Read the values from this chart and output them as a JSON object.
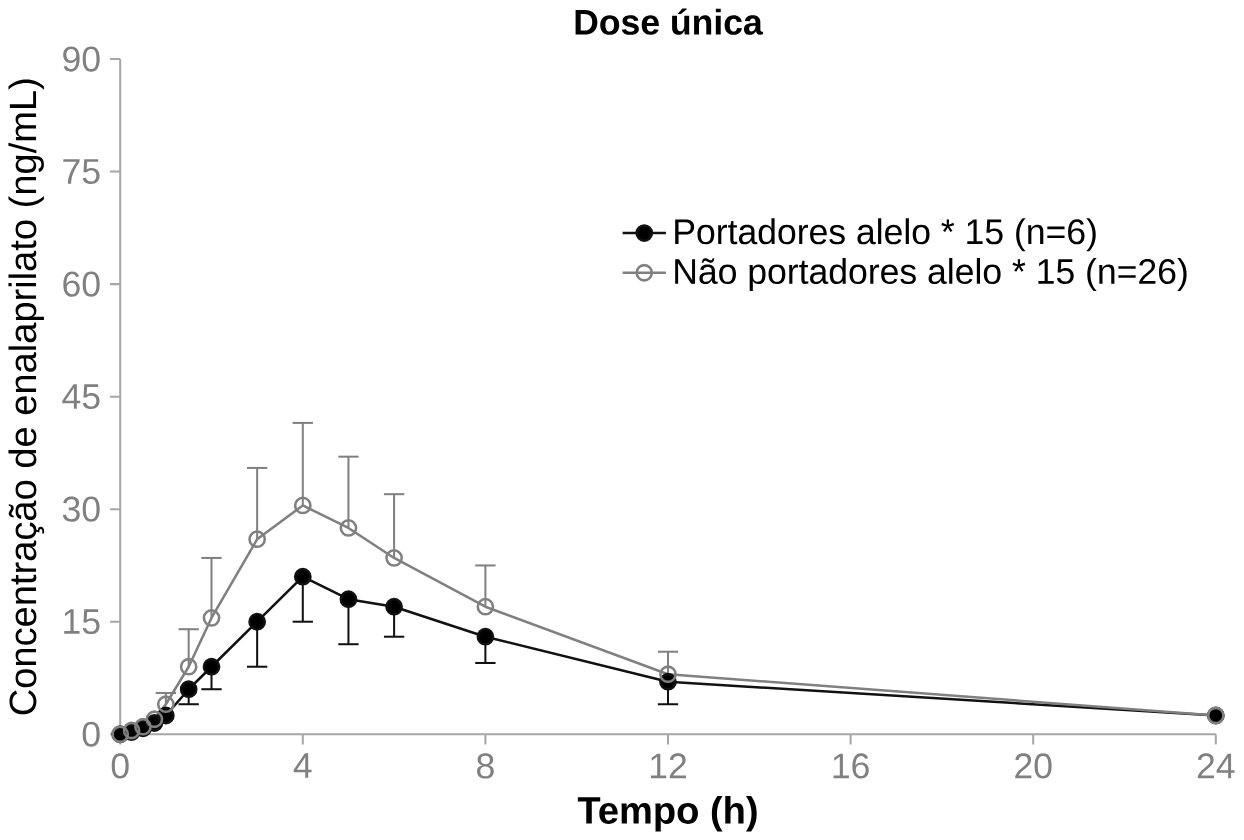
{
  "chart_data": {
    "type": "line",
    "title": "Dose única",
    "xlabel": "Tempo (h)",
    "ylabel": "Concentração de enalaprilato (ng/mL)",
    "x": [
      0,
      0.25,
      0.5,
      0.75,
      1,
      1.5,
      2,
      3,
      4,
      5,
      6,
      8,
      12,
      24
    ],
    "series": [
      {
        "name": "Portadores alelo * 15 (n=6)",
        "color": "#111111",
        "values": [
          0,
          0.3,
          0.8,
          1.5,
          2.5,
          6,
          9,
          15,
          21,
          18,
          17,
          13,
          7,
          2.5
        ],
        "errors": [
          null,
          null,
          null,
          null,
          null,
          [
            4,
            6
          ],
          [
            6,
            9
          ],
          [
            9,
            15
          ],
          [
            15,
            21
          ],
          [
            12,
            18
          ],
          [
            13,
            17
          ],
          [
            9.5,
            13
          ],
          [
            4,
            7
          ],
          null
        ]
      },
      {
        "name": "Não portadores alelo * 15 (n=26)",
        "color": "#808080",
        "values": [
          0,
          0.5,
          1,
          2,
          4,
          9,
          15.5,
          26,
          30.5,
          27.5,
          23.5,
          17,
          8,
          2.5
        ],
        "errors": [
          null,
          null,
          null,
          null,
          [
            4,
            5.5
          ],
          [
            9,
            14
          ],
          [
            15.5,
            23.5
          ],
          [
            26,
            35.5
          ],
          [
            30.5,
            41.5
          ],
          [
            27.5,
            37
          ],
          [
            23.5,
            32
          ],
          [
            17,
            22.5
          ],
          [
            8,
            11
          ],
          null
        ]
      }
    ],
    "xlim": [
      0,
      24
    ],
    "xticks": [
      0,
      4,
      8,
      12,
      16,
      20,
      24
    ],
    "ylim": [
      0,
      90
    ],
    "yticks": [
      0,
      15,
      30,
      45,
      60,
      75,
      90
    ],
    "marker": "circle",
    "line_style": "solid",
    "legend": "top right",
    "grid": false
  }
}
